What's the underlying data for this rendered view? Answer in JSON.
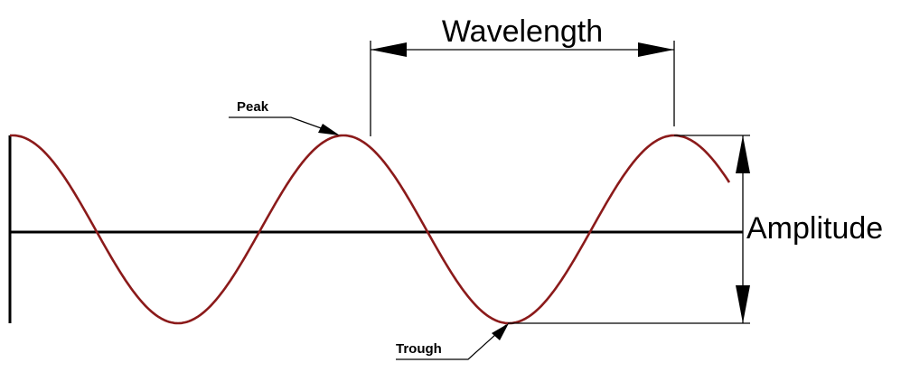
{
  "labels": {
    "wavelength": "Wavelength",
    "amplitude": "Amplitude",
    "peak": "Peak",
    "trough": "Trough"
  },
  "colors": {
    "wave": "#8b1a1a",
    "lines": "#000000",
    "background": "#ffffff"
  }
}
